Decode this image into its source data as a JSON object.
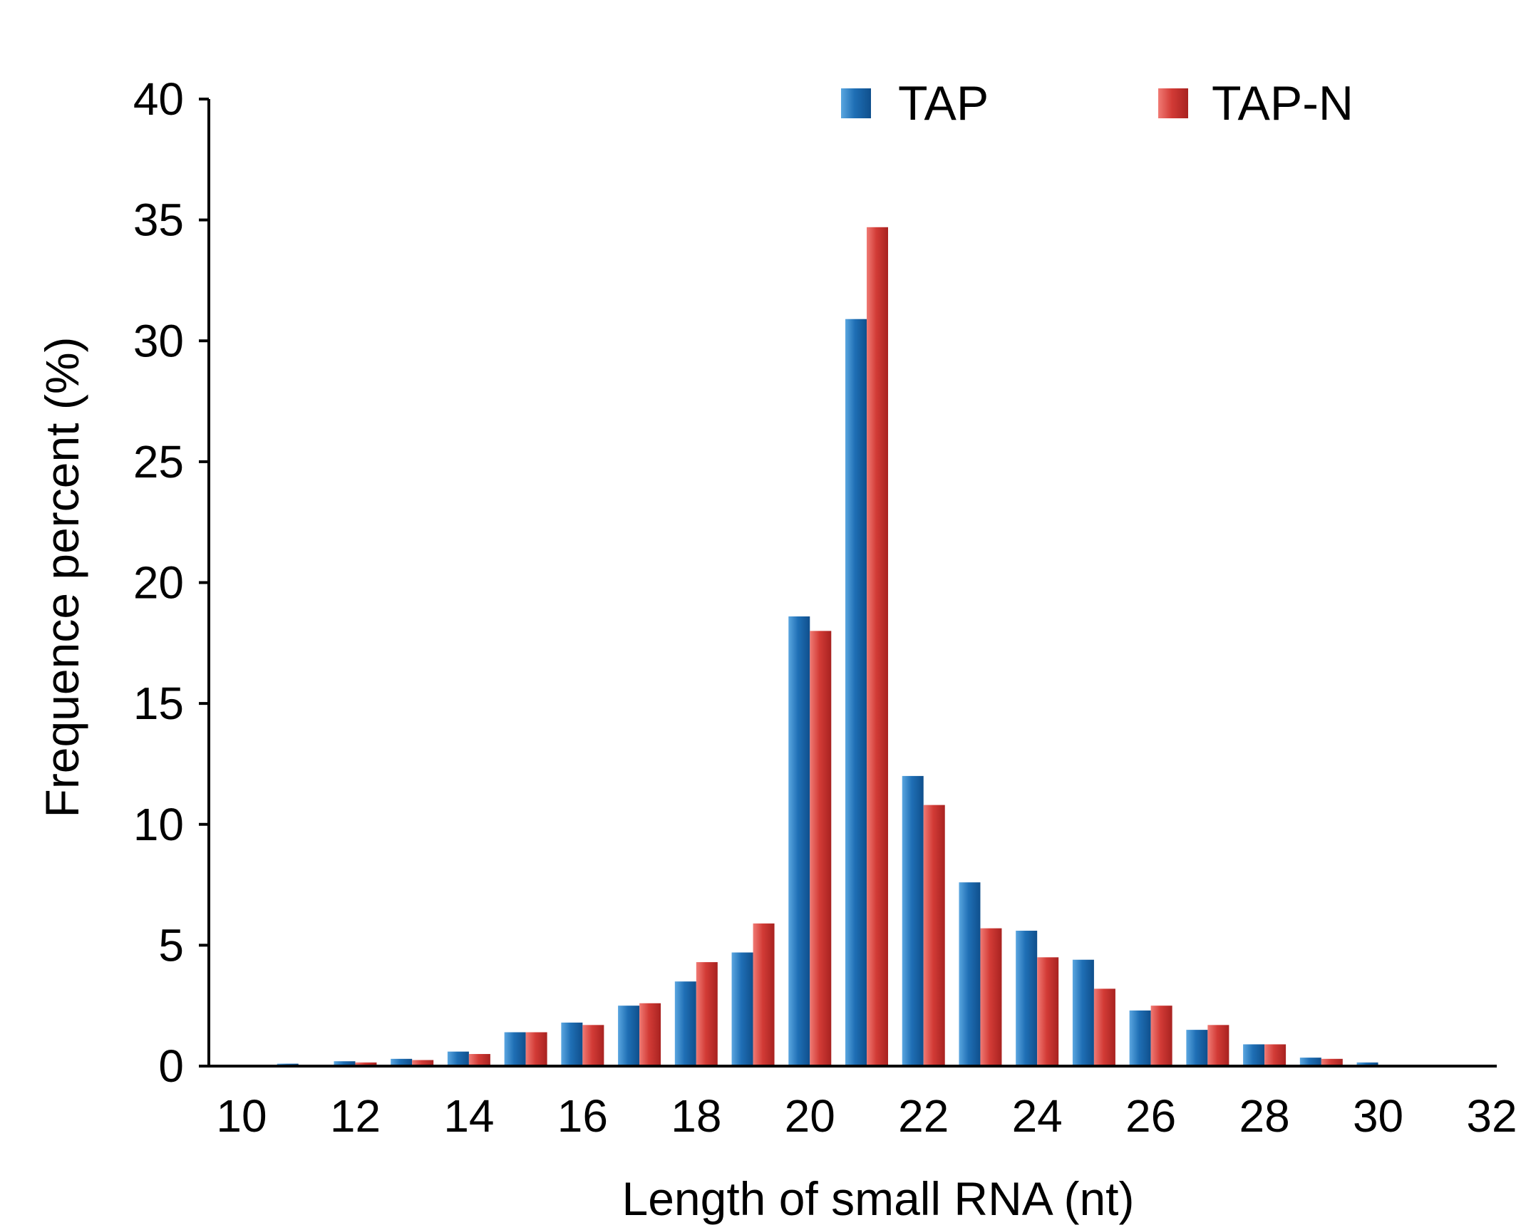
{
  "chart_data": {
    "type": "bar",
    "title": "",
    "xlabel": "Length of small RNA (nt)",
    "ylabel": "Frequence percent (%)",
    "ylim": [
      0,
      40
    ],
    "xlim": [
      10,
      32
    ],
    "yticks": [
      "0",
      "5",
      "10",
      "15",
      "20",
      "25",
      "30",
      "35",
      "40"
    ],
    "xticks": [
      "10",
      "12",
      "14",
      "16",
      "18",
      "20",
      "22",
      "24",
      "26",
      "28",
      "30",
      "32"
    ],
    "categories": [
      11,
      12,
      13,
      14,
      15,
      16,
      17,
      18,
      19,
      20,
      21,
      22,
      23,
      24,
      25,
      26,
      27,
      28,
      29,
      30
    ],
    "series": [
      {
        "name": "TAP",
        "color": "#1f6fb5",
        "values": [
          0.1,
          0.2,
          0.3,
          0.6,
          1.4,
          1.8,
          2.5,
          3.5,
          4.7,
          18.6,
          30.9,
          12.0,
          7.6,
          5.6,
          4.4,
          2.3,
          1.5,
          0.9,
          0.35,
          0.15
        ]
      },
      {
        "name": "TAP-N",
        "color": "#d23b36",
        "values": [
          0.0,
          0.15,
          0.25,
          0.5,
          1.4,
          1.7,
          2.6,
          4.3,
          5.9,
          18.0,
          34.7,
          10.8,
          5.7,
          4.5,
          3.2,
          2.5,
          1.7,
          0.9,
          0.3,
          0.05
        ]
      }
    ],
    "legend_position": "top-right"
  }
}
